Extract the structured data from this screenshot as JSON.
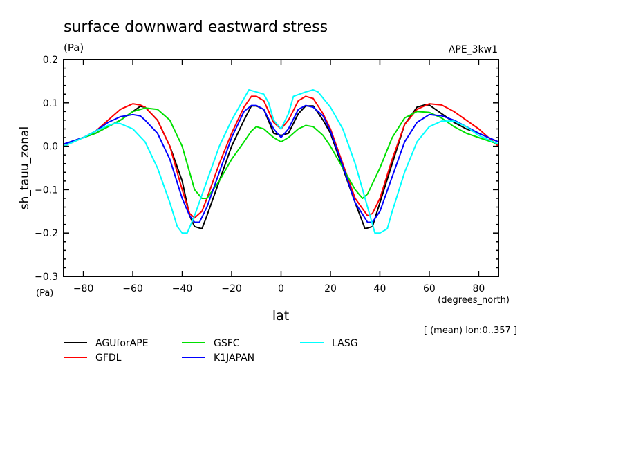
{
  "chart_data": {
    "type": "line",
    "title": "surface downward eastward stress",
    "units_top": "(Pa)",
    "units_bottom": "(Pa)",
    "dataset": "APE_3kw1",
    "xlabel": "lat",
    "xunits": "(degrees_north)",
    "ylabel": "sh_tauu_zonal",
    "note": "[ (mean) lon:0..357 ]",
    "xlim": [
      -88,
      88
    ],
    "ylim": [
      -0.3,
      0.2
    ],
    "xticks": [
      -80,
      -60,
      -40,
      -20,
      0,
      20,
      40,
      60,
      80
    ],
    "xtick_labels": [
      "−80",
      "−60",
      "−40",
      "−20",
      "0",
      "20",
      "40",
      "60",
      "80"
    ],
    "yticks": [
      0.2,
      0.1,
      0.0,
      -0.1,
      -0.2,
      -0.3
    ],
    "ytick_labels": [
      "0.2",
      "0.1",
      "0.0",
      "−0.1",
      "−0.2",
      "−0.3"
    ],
    "grid": false,
    "legend_placement": "bottom",
    "series": [
      {
        "name": "AGUforAPE",
        "color": "#000000",
        "x": [
          -88,
          -80,
          -75,
          -70,
          -65,
          -60,
          -57,
          -55,
          -50,
          -45,
          -40,
          -37,
          -35,
          -32,
          -30,
          -25,
          -20,
          -15,
          -12,
          -10,
          -7,
          -3,
          0,
          3,
          7,
          10,
          13,
          17,
          20,
          25,
          30,
          34,
          37,
          40,
          45,
          50,
          55,
          58,
          60,
          65,
          70,
          75,
          80,
          88
        ],
        "y": [
          0.005,
          0.02,
          0.03,
          0.045,
          0.06,
          0.08,
          0.092,
          0.09,
          0.06,
          0.0,
          -0.08,
          -0.16,
          -0.185,
          -0.19,
          -0.16,
          -0.08,
          0.0,
          0.06,
          0.093,
          0.093,
          0.085,
          0.03,
          0.025,
          0.03,
          0.075,
          0.093,
          0.093,
          0.06,
          0.03,
          -0.05,
          -0.13,
          -0.19,
          -0.185,
          -0.13,
          -0.04,
          0.05,
          0.09,
          0.095,
          0.095,
          0.075,
          0.055,
          0.04,
          0.03,
          0.01
        ]
      },
      {
        "name": "GFDL",
        "color": "#ff0000",
        "x": [
          -88,
          -80,
          -75,
          -70,
          -65,
          -60,
          -57,
          -55,
          -50,
          -45,
          -40,
          -37,
          -35,
          -32,
          -30,
          -25,
          -20,
          -15,
          -12,
          -10,
          -7,
          -3,
          0,
          3,
          7,
          10,
          13,
          17,
          20,
          25,
          30,
          35,
          37,
          40,
          45,
          50,
          55,
          60,
          65,
          70,
          75,
          80,
          88
        ],
        "y": [
          0.0,
          0.02,
          0.035,
          0.06,
          0.085,
          0.098,
          0.095,
          0.09,
          0.06,
          0.0,
          -0.1,
          -0.155,
          -0.165,
          -0.15,
          -0.12,
          -0.04,
          0.03,
          0.09,
          0.115,
          0.115,
          0.105,
          0.055,
          0.04,
          0.06,
          0.105,
          0.115,
          0.11,
          0.075,
          0.04,
          -0.04,
          -0.12,
          -0.16,
          -0.155,
          -0.12,
          -0.03,
          0.05,
          0.085,
          0.098,
          0.095,
          0.08,
          0.06,
          0.04,
          0.0
        ]
      },
      {
        "name": "GSFC",
        "color": "#00e000",
        "x": [
          -88,
          -80,
          -75,
          -70,
          -65,
          -60,
          -55,
          -50,
          -45,
          -40,
          -35,
          -32,
          -30,
          -25,
          -20,
          -15,
          -12,
          -10,
          -7,
          -3,
          0,
          3,
          7,
          10,
          13,
          17,
          20,
          25,
          30,
          33,
          35,
          40,
          45,
          50,
          55,
          60,
          65,
          70,
          75,
          80,
          88
        ],
        "y": [
          0.0,
          0.02,
          0.03,
          0.045,
          0.06,
          0.08,
          0.088,
          0.085,
          0.06,
          0.0,
          -0.1,
          -0.12,
          -0.12,
          -0.08,
          -0.03,
          0.01,
          0.035,
          0.045,
          0.04,
          0.02,
          0.01,
          0.02,
          0.04,
          0.048,
          0.045,
          0.025,
          0.0,
          -0.05,
          -0.1,
          -0.12,
          -0.11,
          -0.05,
          0.02,
          0.065,
          0.08,
          0.078,
          0.065,
          0.045,
          0.03,
          0.02,
          0.005
        ]
      },
      {
        "name": "K1JAPAN",
        "color": "#0000ff",
        "x": [
          -88,
          -80,
          -75,
          -70,
          -65,
          -60,
          -57,
          -55,
          -50,
          -45,
          -40,
          -37,
          -35,
          -33,
          -30,
          -25,
          -20,
          -15,
          -12,
          -10,
          -7,
          -3,
          0,
          3,
          7,
          10,
          13,
          17,
          20,
          25,
          30,
          35,
          37,
          40,
          45,
          50,
          55,
          60,
          65,
          70,
          75,
          80,
          88
        ],
        "y": [
          0.005,
          0.02,
          0.035,
          0.055,
          0.068,
          0.073,
          0.07,
          0.06,
          0.03,
          -0.03,
          -0.12,
          -0.16,
          -0.175,
          -0.175,
          -0.14,
          -0.06,
          0.02,
          0.08,
          0.094,
          0.094,
          0.085,
          0.04,
          0.02,
          0.04,
          0.085,
          0.094,
          0.09,
          0.07,
          0.035,
          -0.045,
          -0.13,
          -0.175,
          -0.175,
          -0.15,
          -0.07,
          0.01,
          0.055,
          0.073,
          0.07,
          0.06,
          0.045,
          0.03,
          0.01
        ]
      },
      {
        "name": "LASG",
        "color": "#00ffff",
        "x": [
          -88,
          -80,
          -75,
          -70,
          -67,
          -65,
          -60,
          -55,
          -50,
          -45,
          -42,
          -40,
          -38,
          -35,
          -30,
          -25,
          -20,
          -15,
          -13,
          -10,
          -7,
          -5,
          -3,
          0,
          3,
          5,
          10,
          13,
          15,
          20,
          25,
          30,
          35,
          38,
          40,
          43,
          45,
          50,
          55,
          60,
          65,
          70,
          75,
          80,
          88
        ],
        "y": [
          0.0,
          0.02,
          0.035,
          0.048,
          0.053,
          0.052,
          0.04,
          0.01,
          -0.05,
          -0.13,
          -0.185,
          -0.2,
          -0.2,
          -0.16,
          -0.08,
          0.0,
          0.06,
          0.11,
          0.13,
          0.125,
          0.12,
          0.1,
          0.06,
          0.04,
          0.075,
          0.115,
          0.125,
          0.13,
          0.125,
          0.09,
          0.04,
          -0.04,
          -0.14,
          -0.2,
          -0.2,
          -0.19,
          -0.15,
          -0.06,
          0.01,
          0.045,
          0.058,
          0.058,
          0.045,
          0.025,
          0.005
        ]
      }
    ]
  }
}
